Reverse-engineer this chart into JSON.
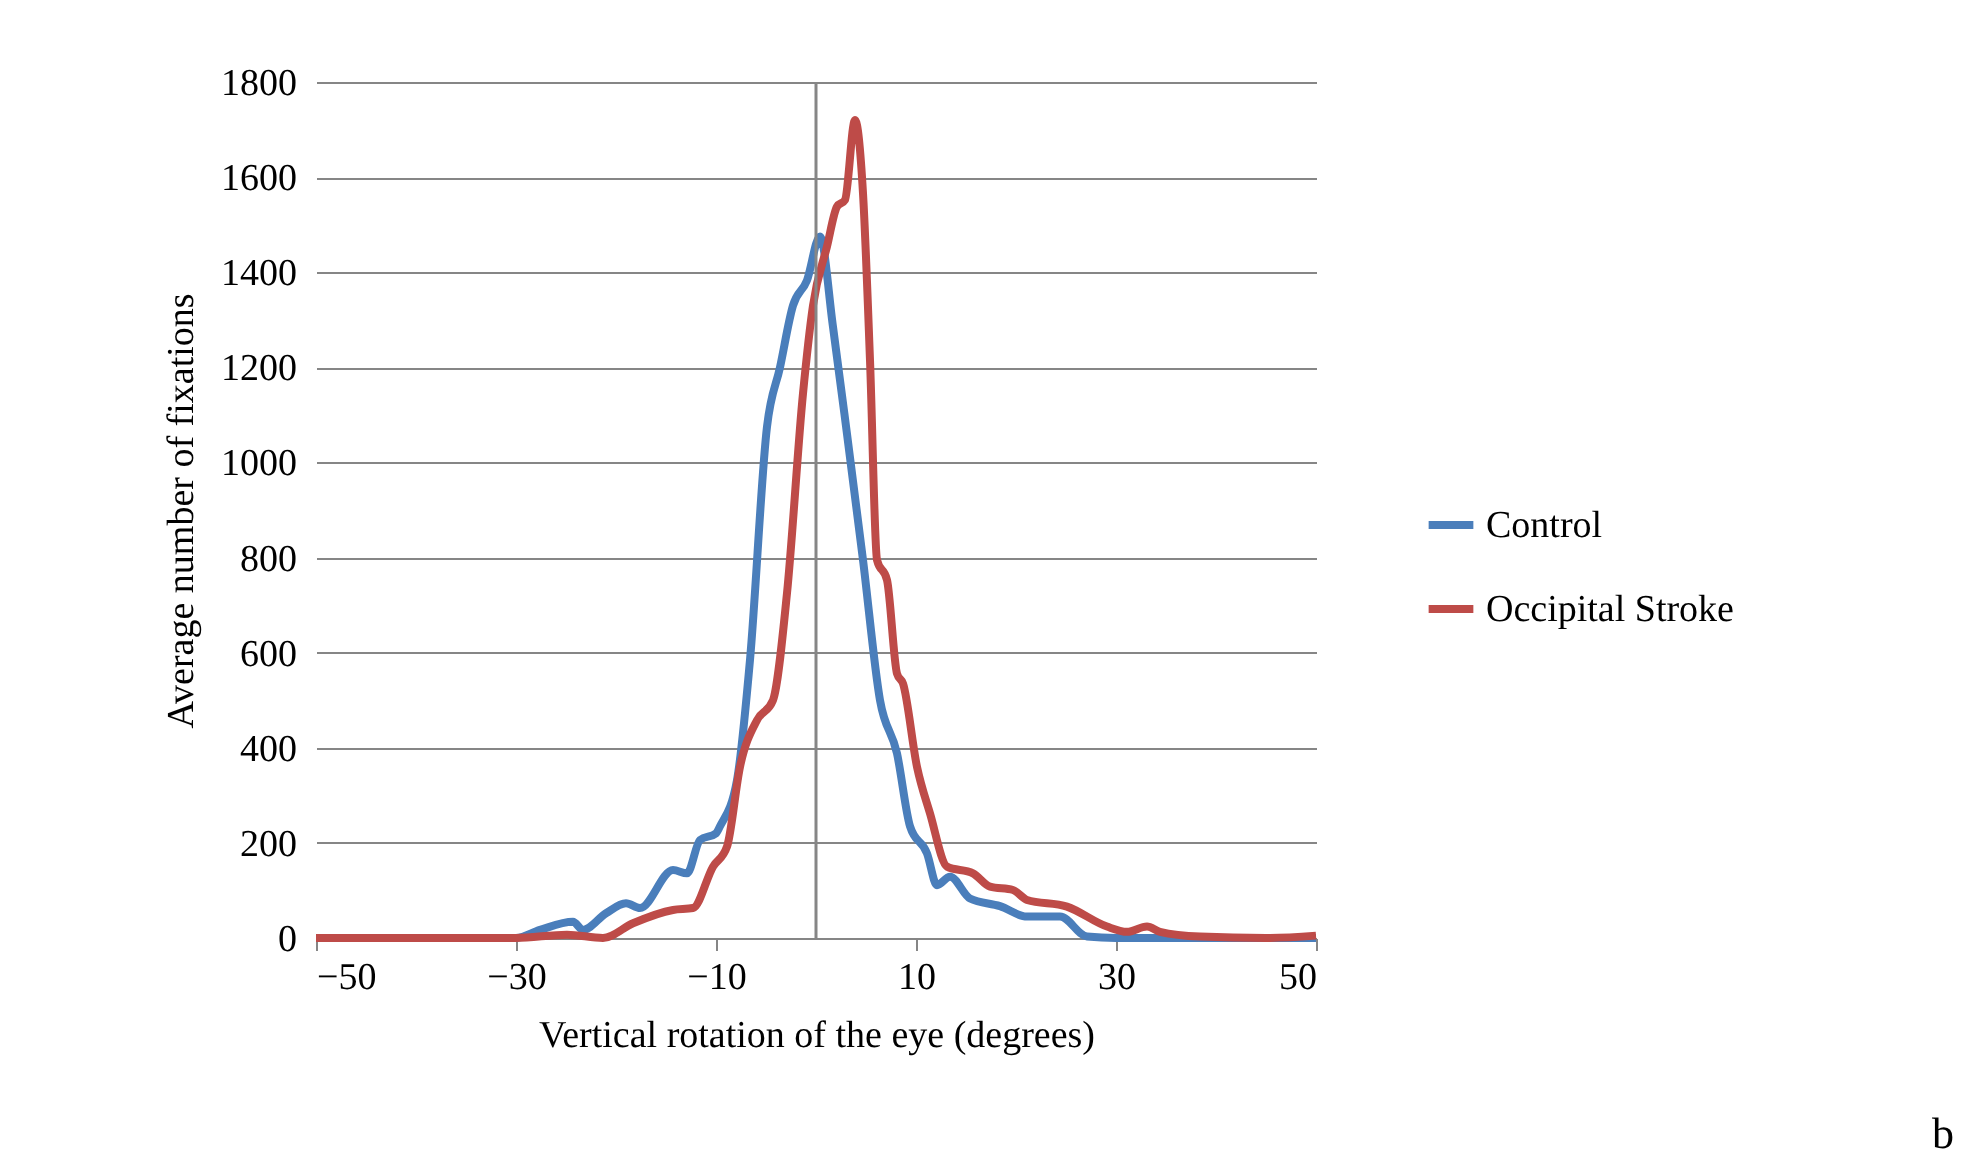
{
  "chart_data": {
    "type": "line",
    "xlabel": "Vertical rotation of the eye (degrees)",
    "ylabel": "Average number of fixations",
    "xlim": [
      -50,
      50
    ],
    "xticks": [
      -50,
      -30,
      -10,
      10,
      30,
      50
    ],
    "ylim": [
      0,
      1800
    ],
    "yticks": [
      0,
      200,
      400,
      600,
      800,
      1000,
      1200,
      1400,
      1600,
      1800
    ],
    "grid": "y",
    "legend": "right",
    "marker": "none",
    "line_style": "solid",
    "ref_lines": [
      {
        "axis": "x",
        "value": 0,
        "color": "#868686"
      }
    ],
    "annotations": [
      "b"
    ],
    "series": [
      {
        "name": "Control",
        "color": "#4a7ebb",
        "x": [
          -50,
          -40,
          -30,
          -27.6,
          -24.3,
          -23.3,
          -21,
          -19,
          -17.6,
          -14.3,
          -12.9,
          -11.6,
          -10,
          -9.6,
          -7.9,
          -6.6,
          -4.9,
          -3.6,
          -2.3,
          -0.9,
          0.4,
          1.7,
          3.1,
          4.7,
          6.4,
          8.1,
          9.4,
          11.1,
          12.1,
          13.4,
          15.4,
          18.4,
          21.1,
          24.4,
          27.1,
          30,
          40,
          50
        ],
        "values": [
          0,
          0,
          0,
          17,
          34,
          17,
          52,
          73,
          63,
          143,
          136,
          206,
          220,
          235,
          332,
          585,
          1075,
          1200,
          1330,
          1383,
          1475,
          1285,
          1060,
          795,
          500,
          388,
          235,
          178,
          111,
          129,
          83,
          67,
          45,
          45,
          3,
          0,
          0,
          0
        ]
      },
      {
        "name": "Occipital Stroke",
        "color": "#be4b48",
        "x": [
          -50,
          -40,
          -30,
          -24.9,
          -21.3,
          -18.3,
          -14.3,
          -12.3,
          -10.3,
          -8.9,
          -7.6,
          -5.9,
          -4.3,
          -2.9,
          -1.3,
          -0.3,
          1.1,
          2.1,
          2.9,
          3.9,
          4.7,
          5.4,
          6.1,
          7.1,
          8.1,
          8.7,
          10.1,
          11.4,
          13.1,
          15.7,
          17.4,
          19.7,
          21.1,
          25.1,
          29.1,
          31.1,
          33.1,
          34.4,
          38.4,
          45,
          50
        ],
        "values": [
          0,
          0,
          0,
          7,
          0,
          31,
          59,
          63,
          150,
          192,
          360,
          458,
          500,
          725,
          1145,
          1330,
          1454,
          1538,
          1552,
          1720,
          1566,
          1215,
          795,
          753,
          556,
          535,
          360,
          262,
          150,
          136,
          108,
          101,
          80,
          66,
          24,
          13,
          24,
          13,
          3,
          0,
          5
        ]
      }
    ]
  }
}
